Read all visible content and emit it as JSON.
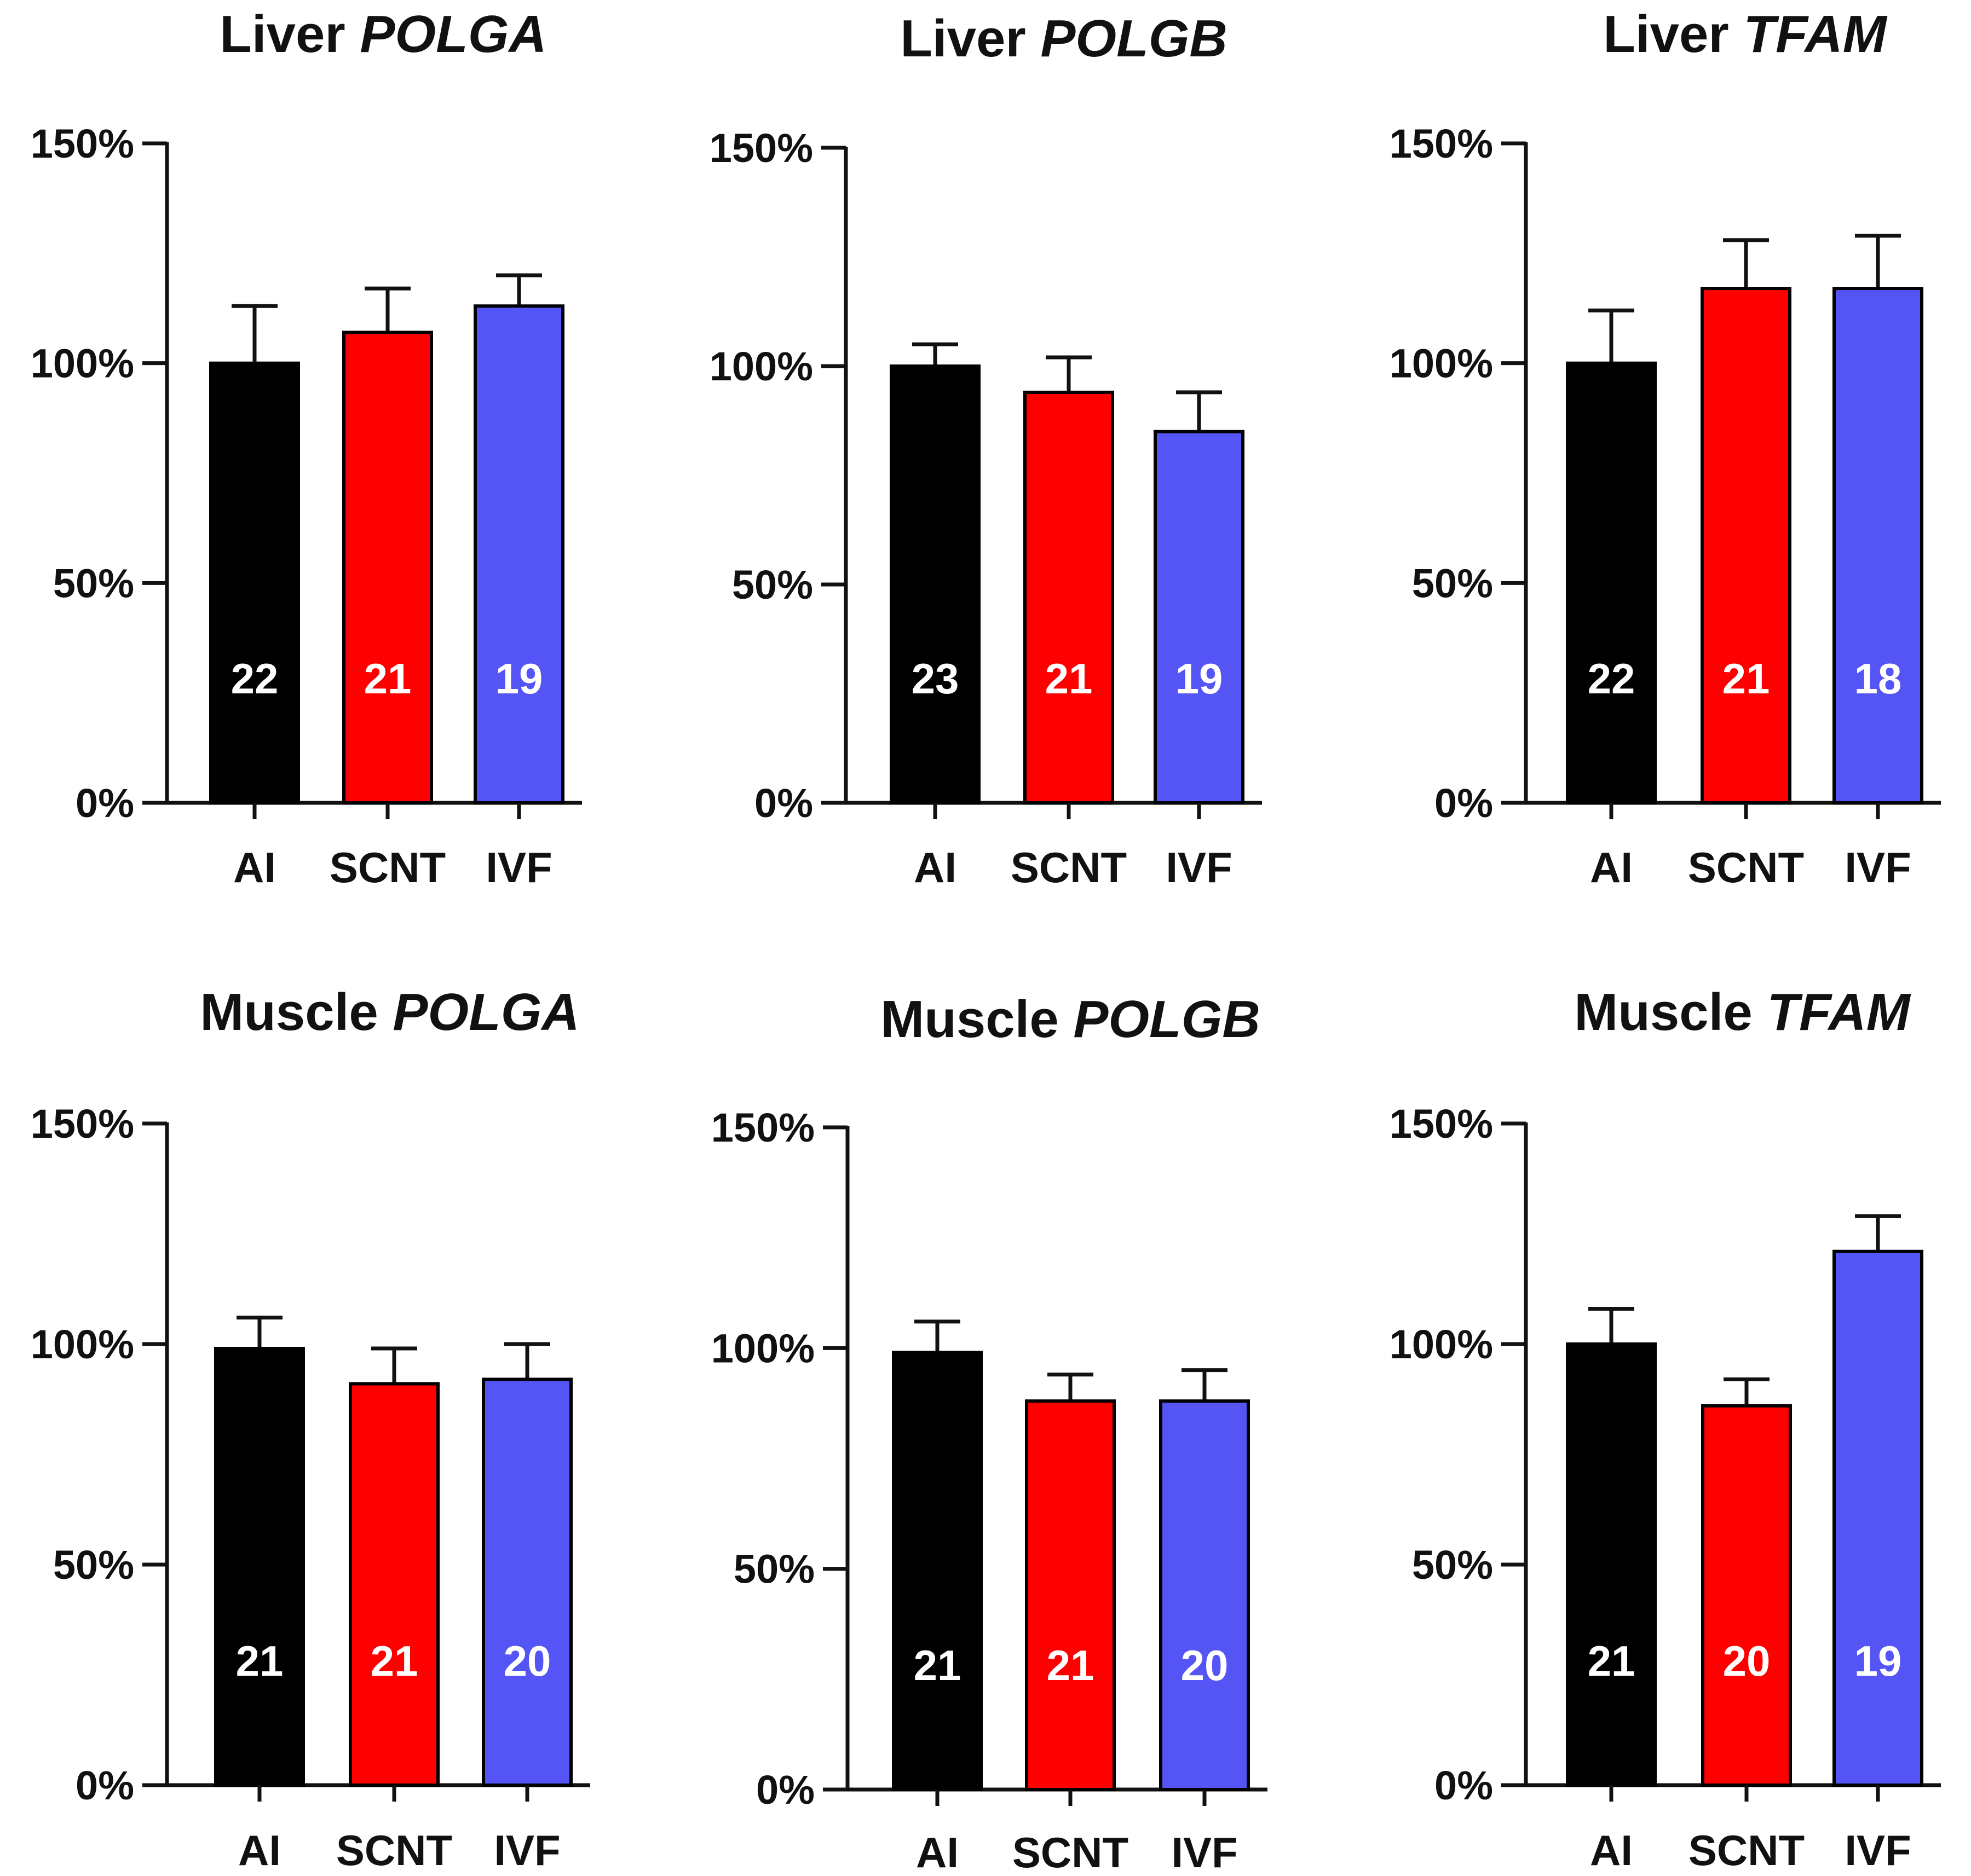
{
  "chart_data": [
    {
      "type": "bar",
      "title": "Liver",
      "title_gene": "POLGA",
      "categories": [
        "AI",
        "SCNT",
        "IVF"
      ],
      "values": [
        100,
        107,
        113
      ],
      "errors": [
        13,
        10,
        7
      ],
      "n_labels": [
        "22",
        "21",
        "19"
      ],
      "yticks": [
        "0%",
        "50%",
        "100%",
        "150%"
      ],
      "ylim": [
        0,
        150
      ]
    },
    {
      "type": "bar",
      "title": "Liver",
      "title_gene": "POLGB",
      "categories": [
        "AI",
        "SCNT",
        "IVF"
      ],
      "values": [
        100,
        94,
        85
      ],
      "errors": [
        5,
        8,
        9
      ],
      "n_labels": [
        "23",
        "21",
        "19"
      ],
      "yticks": [
        "0%",
        "50%",
        "100%",
        "150%"
      ],
      "ylim": [
        0,
        150
      ]
    },
    {
      "type": "bar",
      "title": "Liver",
      "title_gene": "TFAM",
      "categories": [
        "AI",
        "SCNT",
        "IVF"
      ],
      "values": [
        100,
        117,
        117
      ],
      "errors": [
        12,
        11,
        12
      ],
      "n_labels": [
        "22",
        "21",
        "18"
      ],
      "yticks": [
        "0%",
        "50%",
        "100%",
        "150%"
      ],
      "ylim": [
        0,
        150
      ]
    },
    {
      "type": "bar",
      "title": "Muscle",
      "title_gene": "POLGA",
      "categories": [
        "AI",
        "SCNT",
        "IVF"
      ],
      "values": [
        99,
        91,
        92
      ],
      "errors": [
        7,
        8,
        8
      ],
      "n_labels": [
        "21",
        "21",
        "20"
      ],
      "yticks": [
        "0%",
        "50%",
        "100%",
        "150%"
      ],
      "ylim": [
        0,
        150
      ]
    },
    {
      "type": "bar",
      "title": "Muscle",
      "title_gene": "POLGB",
      "categories": [
        "AI",
        "SCNT",
        "IVF"
      ],
      "values": [
        99,
        88,
        88
      ],
      "errors": [
        7,
        6,
        7
      ],
      "n_labels": [
        "21",
        "21",
        "20"
      ],
      "yticks": [
        "0%",
        "50%",
        "100%",
        "150%"
      ],
      "ylim": [
        0,
        150
      ]
    },
    {
      "type": "bar",
      "title": "Muscle",
      "title_gene": "TFAM",
      "categories": [
        "AI",
        "SCNT",
        "IVF"
      ],
      "values": [
        100,
        86,
        121
      ],
      "errors": [
        8,
        6,
        8
      ],
      "n_labels": [
        "21",
        "20",
        "19"
      ],
      "yticks": [
        "0%",
        "50%",
        "100%",
        "150%"
      ],
      "ylim": [
        0,
        150
      ]
    }
  ],
  "colors": {
    "AI": "#000000",
    "SCNT": "#ff0000",
    "IVF": "#5555f5",
    "axis": "#111111"
  }
}
